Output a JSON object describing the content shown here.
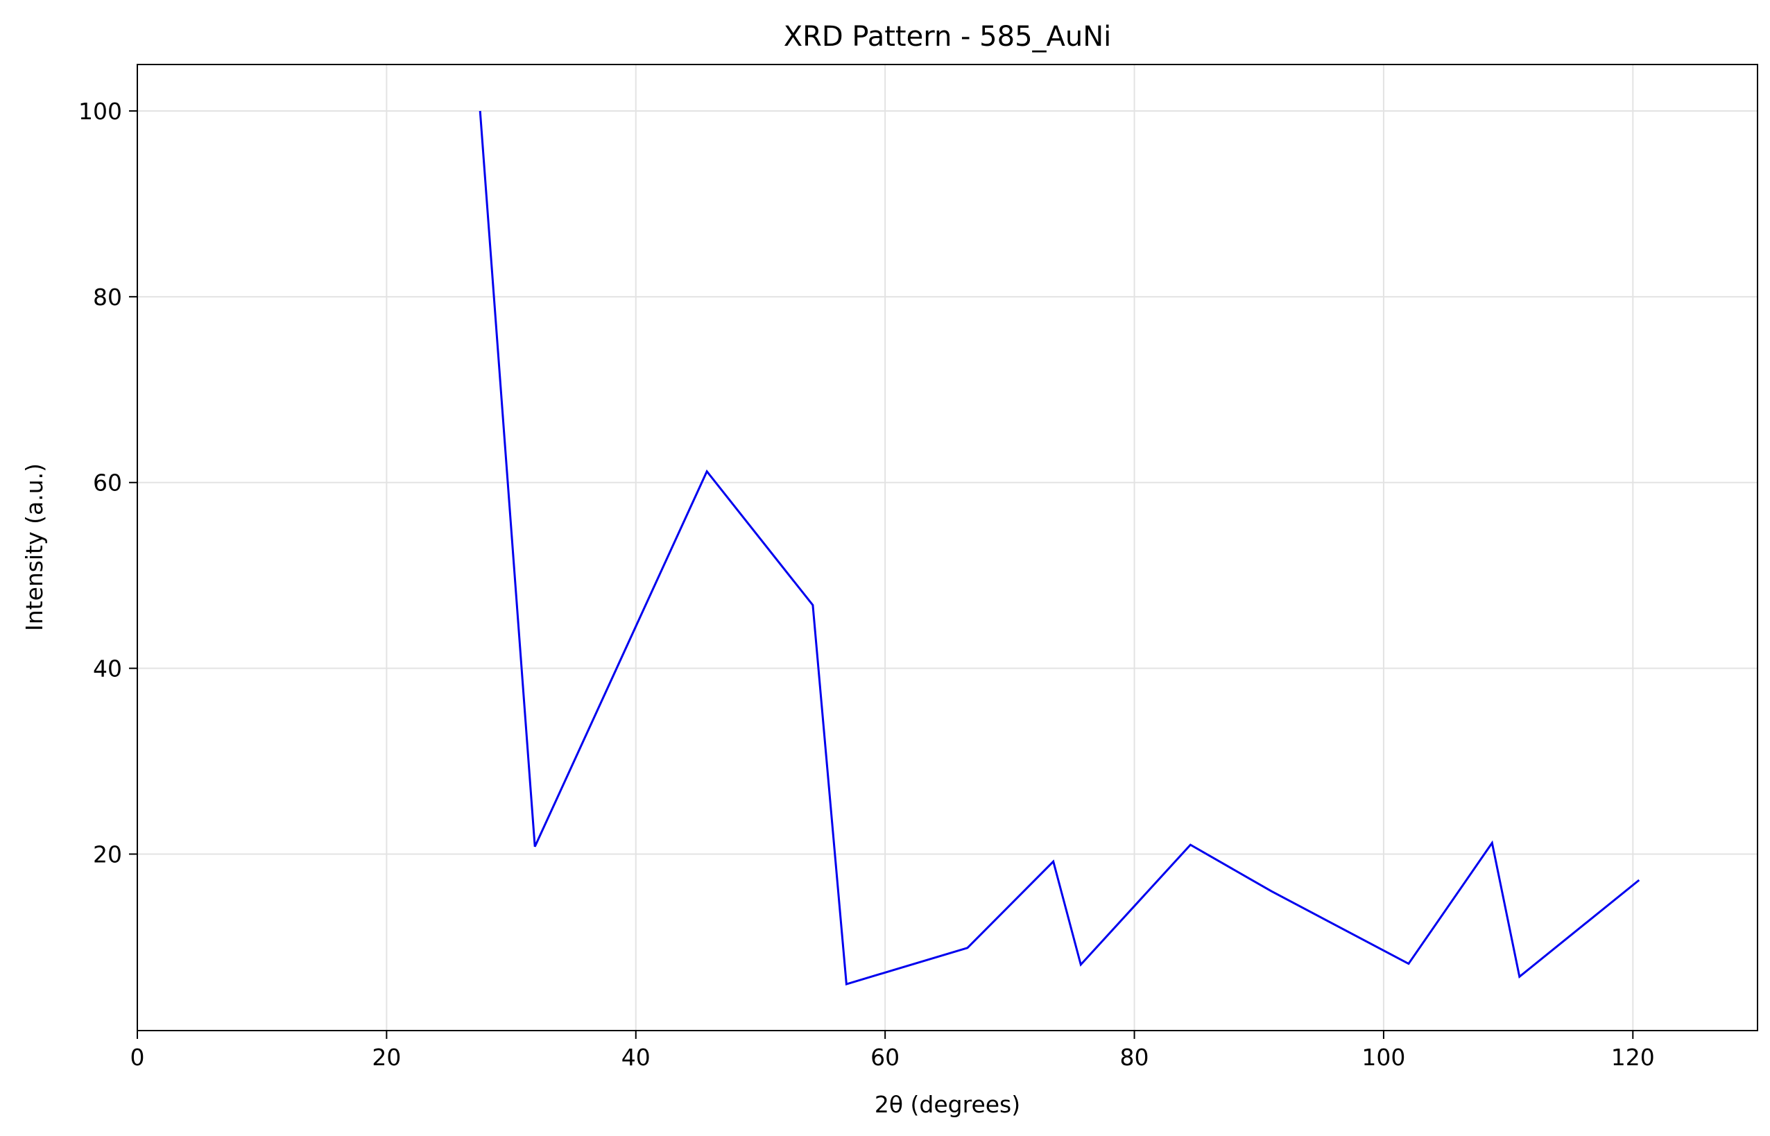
{
  "chart_data": {
    "type": "line",
    "title": "XRD Pattern - 585_AuNi",
    "xlabel": "2θ (degrees)",
    "ylabel": "Intensity (a.u.)",
    "xlim": [
      0,
      130
    ],
    "ylim": [
      1,
      105
    ],
    "x_ticks": [
      0,
      20,
      40,
      60,
      80,
      100,
      120
    ],
    "y_ticks": [
      20,
      40,
      60,
      80,
      100
    ],
    "grid": true,
    "legend": "none",
    "series": [
      {
        "color": "#0000ee",
        "x": [
          27.5,
          31.9,
          45.7,
          54.2,
          56.9,
          66.6,
          73.5,
          75.7,
          84.5,
          91.0,
          102.0,
          108.7,
          110.9,
          120.5
        ],
        "y": [
          100.0,
          20.8,
          61.2,
          46.8,
          6.0,
          9.9,
          19.2,
          8.1,
          21.0,
          16.0,
          8.2,
          21.2,
          6.8,
          17.2
        ]
      }
    ]
  }
}
